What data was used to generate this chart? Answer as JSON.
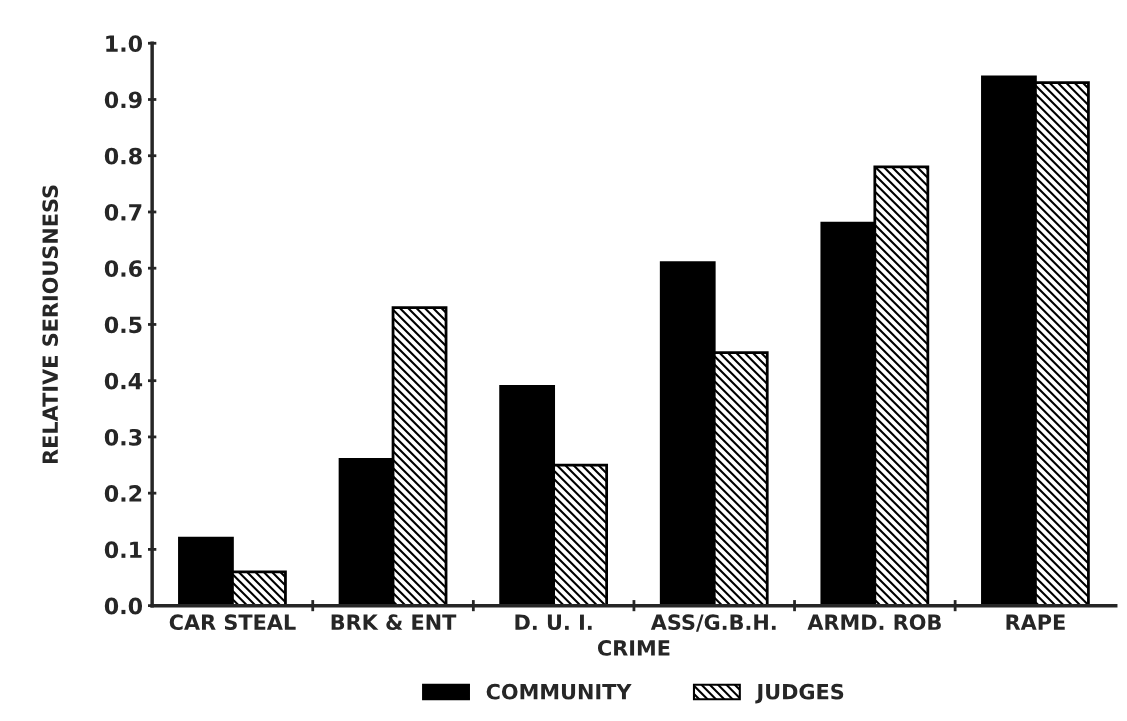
{
  "chart_data": {
    "type": "bar",
    "xlabel": "CRIME",
    "ylabel": "RELATIVE SERIOUSNESS",
    "categories": [
      "CAR STEAL",
      "BRK & ENT",
      "D. U. I.",
      "ASS/G.B.H.",
      "ARMD. ROB",
      "RAPE"
    ],
    "series": [
      {
        "name": "COMMUNITY",
        "color": "#000000",
        "values": [
          0.12,
          0.26,
          0.39,
          0.61,
          0.68,
          0.94
        ]
      },
      {
        "name": "JUDGES",
        "color": "#000000",
        "values": [
          0.06,
          0.53,
          0.25,
          0.45,
          0.78,
          0.93
        ]
      }
    ],
    "ylim": [
      0,
      1.0
    ],
    "yticks": [
      {
        "value": 0,
        "label": "0.0"
      },
      0.1,
      0.2,
      0.3,
      0.4,
      0.5,
      0.6,
      0.7,
      0.8,
      0.9,
      {
        "value": 1.0,
        "label": "1.0"
      }
    ],
    "grid": false,
    "legend": "bottom"
  }
}
